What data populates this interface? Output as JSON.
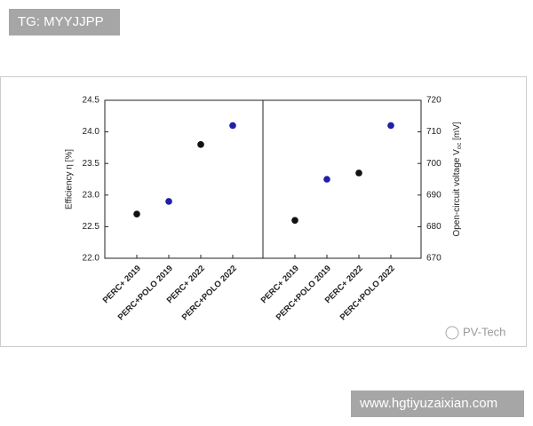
{
  "watermark": {
    "top": "TG: MYYJJPP",
    "bottom": "www.hgtiyuzaixian.com",
    "source": "PV-Tech"
  },
  "chart_data": [
    {
      "type": "scatter",
      "ylabel": "Efficiency η [%]",
      "categories": [
        "PERC+ 2019",
        "PERC+POLO 2019",
        "PERC+ 2022",
        "PERC+POLO 2022"
      ],
      "values": [
        22.7,
        22.9,
        23.8,
        24.1
      ],
      "colors": [
        "#111111",
        "#1f1fa8",
        "#111111",
        "#1f1fa8"
      ],
      "ylim": [
        22,
        24.5
      ],
      "yticks": [
        {
          "value": 22,
          "label": "22.0"
        },
        22.5,
        {
          "value": 23,
          "label": "23.0"
        },
        23.5,
        {
          "value": 24,
          "label": "24.0"
        },
        24.5
      ],
      "axis_side": "left"
    },
    {
      "type": "scatter",
      "ylabel": [
        "Open-circuit voltage V",
        "oc",
        " [mV]"
      ],
      "categories": [
        "PERC+ 2019",
        "PERC+POLO 2019",
        "PERC+ 2022",
        "PERC+POLO 2022"
      ],
      "values": [
        682,
        695,
        697,
        712
      ],
      "colors": [
        "#111111",
        "#1f1fa8",
        "#111111",
        "#1f1fa8"
      ],
      "ylim": [
        670,
        720
      ],
      "yticks": [
        670,
        680,
        690,
        700,
        710,
        720
      ],
      "axis_side": "right"
    }
  ]
}
